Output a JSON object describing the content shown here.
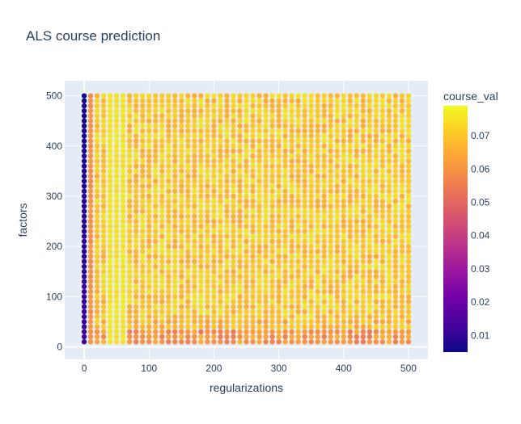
{
  "chart_data": {
    "type": "scatter",
    "title": "ALS course prediction",
    "xlabel": "regularizations",
    "ylabel": "factors",
    "xlim": [
      -30,
      530
    ],
    "ylim": [
      -25,
      530
    ],
    "xticks": [
      0,
      100,
      200,
      300,
      400,
      500
    ],
    "yticks": [
      0,
      100,
      200,
      300,
      400,
      500
    ],
    "x_grid": {
      "start": 0,
      "end": 500,
      "step": 10
    },
    "y_grid": {
      "start": 10,
      "end": 500,
      "step": 10
    },
    "colorbar": {
      "title": "course_val",
      "range": [
        0.005,
        0.079
      ],
      "ticks": [
        0.01,
        0.02,
        0.03,
        0.04,
        0.05,
        0.06,
        0.07
      ],
      "tick_labels": [
        "0.01",
        "0.02",
        "0.03",
        "0.04",
        "0.05",
        "0.06",
        "0.07"
      ],
      "colorscale": [
        "#0d0887",
        "#46039f",
        "#7201a8",
        "#9c179e",
        "#bd3786",
        "#d8576b",
        "#ed7953",
        "#fb9f3a",
        "#fdca26",
        "#f0f921"
      ]
    },
    "value_model": {
      "reg0_low": 0.006,
      "reg0_high": 0.012,
      "reg10": 0.058,
      "peak_regs": [
        40,
        50,
        60
      ],
      "peak_value": 0.077,
      "base_value": 0.07,
      "low_factor_value": 0.052
    }
  },
  "colors": {
    "plot_bg": "#e5ecf6",
    "grid": "#ffffff",
    "text": "#2a3f5f"
  }
}
